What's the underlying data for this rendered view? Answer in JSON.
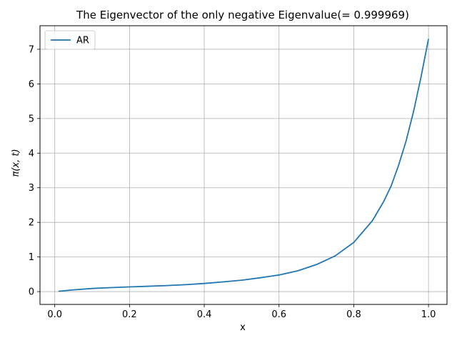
{
  "chart_data": {
    "type": "line",
    "title": "The Eigenvector of the only negative Eigenvalue(= 0.999969)",
    "xlabel": "x",
    "ylabel": "π(x, t)",
    "xlim": [
      -0.0395,
      1.0495
    ],
    "ylim": [
      -0.37,
      7.68
    ],
    "xticks": [
      0.0,
      0.2,
      0.4,
      0.6,
      0.8,
      1.0
    ],
    "xtick_labels": [
      "0.0",
      "0.2",
      "0.4",
      "0.6",
      "0.8",
      "1.0"
    ],
    "yticks": [
      0,
      1,
      2,
      3,
      4,
      5,
      6,
      7
    ],
    "ytick_labels": [
      "0",
      "1",
      "2",
      "3",
      "4",
      "5",
      "6",
      "7"
    ],
    "grid": true,
    "legend": {
      "placement": "top-left",
      "entries": [
        "AR"
      ]
    },
    "series": [
      {
        "name": "AR",
        "color": "#1f77b4",
        "x": [
          0.01,
          0.05,
          0.1,
          0.15,
          0.2,
          0.25,
          0.3,
          0.35,
          0.4,
          0.45,
          0.5,
          0.55,
          0.6,
          0.65,
          0.7,
          0.75,
          0.8,
          0.85,
          0.88,
          0.9,
          0.92,
          0.94,
          0.96,
          0.98,
          1.0
        ],
        "y": [
          0.01,
          0.05,
          0.09,
          0.115,
          0.135,
          0.155,
          0.175,
          0.2,
          0.235,
          0.28,
          0.33,
          0.4,
          0.48,
          0.6,
          0.78,
          1.03,
          1.42,
          2.05,
          2.6,
          3.05,
          3.65,
          4.35,
          5.2,
          6.2,
          7.3
        ]
      }
    ]
  }
}
